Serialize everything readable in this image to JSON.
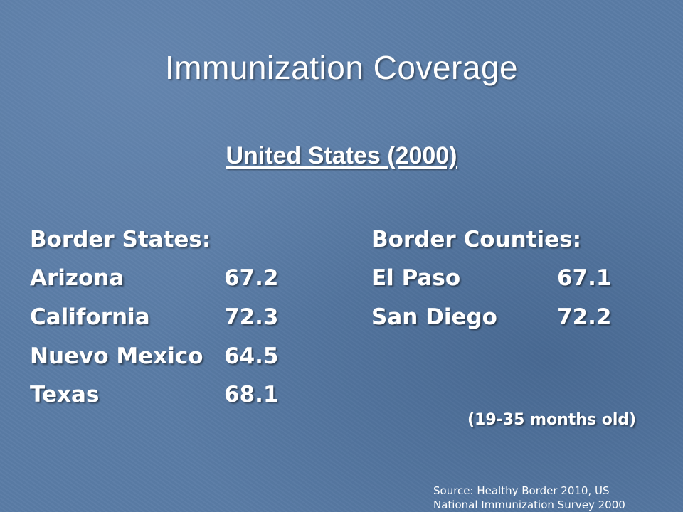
{
  "slide": {
    "title": "Immunization Coverage",
    "subtitle": "United States (2000)",
    "border_states": {
      "header": "Border States:",
      "rows": [
        {
          "name": "Arizona",
          "value": "67.2"
        },
        {
          "name": "California",
          "value": "72.3"
        },
        {
          "name": "Nuevo Mexico",
          "value": "64.5"
        },
        {
          "name": "Texas",
          "value": "68.1"
        }
      ]
    },
    "border_counties": {
      "header": "Border Counties:",
      "rows": [
        {
          "name": "El Paso",
          "value": "67.1"
        },
        {
          "name": "San Diego",
          "value": "72.2"
        }
      ]
    },
    "age_note": "(19-35 months old)",
    "source_line_1": "Source:  Healthy Border 2010, US",
    "source_line_2": "National Immunization Survey 2000"
  }
}
